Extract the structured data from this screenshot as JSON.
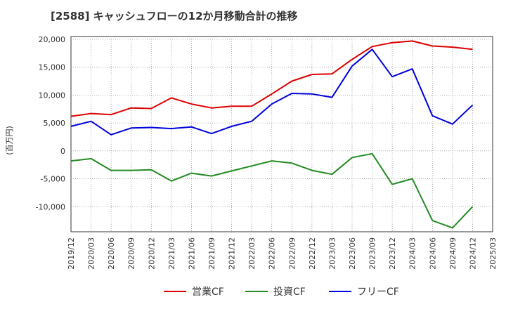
{
  "chart_data": {
    "type": "line",
    "title": "[2588]  キャッシュフローの12か月移動合計の推移",
    "ylabel": "(百万円)",
    "xlabel": "",
    "ylim": [
      -14500,
      20500
    ],
    "yticks": [
      20000,
      15000,
      10000,
      5000,
      0,
      -5000,
      -10000
    ],
    "ytick_labels": [
      "20,000",
      "15,000",
      "10,000",
      "5,000",
      "0",
      "-5,000",
      "-10,000"
    ],
    "categories": [
      "2019/12",
      "2020/03",
      "2020/06",
      "2020/09",
      "2020/12",
      "2021/03",
      "2021/06",
      "2021/09",
      "2021/12",
      "2022/03",
      "2022/06",
      "2022/09",
      "2022/12",
      "2023/03",
      "2023/06",
      "2023/09",
      "2023/12",
      "2024/03",
      "2024/06",
      "2024/09",
      "2024/12",
      "2025/03"
    ],
    "grid": true,
    "legend": "bottom",
    "series": [
      {
        "name": "営業CF",
        "color": "#dd0000",
        "values": [
          6200,
          6700,
          6500,
          7700,
          7600,
          9500,
          8400,
          7700,
          8000,
          8000,
          10200,
          12500,
          13700,
          13800,
          16400,
          18700,
          19400,
          19700,
          18800,
          18600,
          18200,
          null
        ]
      },
      {
        "name": "投資CF",
        "color": "#228b22",
        "values": [
          -1800,
          -1400,
          -3500,
          -3500,
          -3400,
          -5400,
          -4000,
          -4500,
          -3600,
          -2700,
          -1800,
          -2200,
          -3500,
          -4200,
          -1200,
          -500,
          -6000,
          -5000,
          -12500,
          -13800,
          -10000,
          null
        ]
      },
      {
        "name": "フリーCF",
        "color": "#0000dd",
        "values": [
          4400,
          5300,
          2900,
          4100,
          4200,
          4000,
          4300,
          3100,
          4400,
          5300,
          8400,
          10300,
          10200,
          9600,
          15200,
          18200,
          13300,
          14700,
          6300,
          4800,
          8200,
          null
        ]
      }
    ]
  }
}
